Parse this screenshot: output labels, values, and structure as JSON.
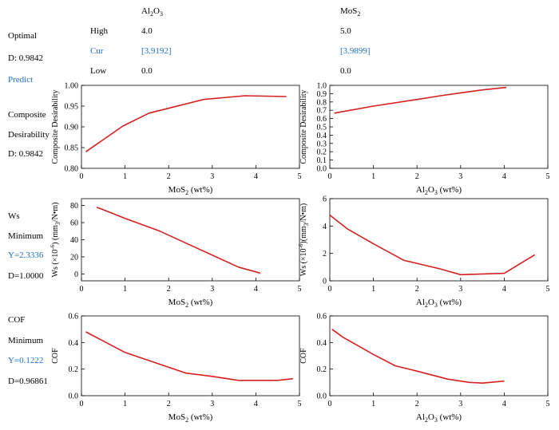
{
  "header": {
    "factors": [
      {
        "name": "Al",
        "sub1": "2",
        "mid": "O",
        "sub2": "3",
        "high": "4.0",
        "cur": "[3.9192]",
        "low": "0.0"
      },
      {
        "name": "MoS",
        "sub1": "2",
        "mid": "",
        "sub2": "",
        "high": "5.0",
        "cur": "[3.9899]",
        "low": "0.0"
      }
    ],
    "row_labels": {
      "high": "High",
      "cur": "Cur",
      "low": "Low"
    },
    "optimal": "Optimal",
    "d_value": "D: 0.9842",
    "predict": "Predict"
  },
  "rows": [
    {
      "lines": [
        "Composite",
        "Desirability",
        "D: 0.9842"
      ],
      "blue_line": -1
    },
    {
      "lines": [
        "Ws",
        "Minimum",
        "Y=2.3336",
        "D=1.0000"
      ],
      "blue_line": 2
    },
    {
      "lines": [
        "COF",
        "Minimum",
        "Y=0.1222",
        "D=0.96861"
      ],
      "blue_line": 2
    }
  ],
  "colors": {
    "line": "#d42020",
    "accent": "#1e6fc7"
  },
  "chart_data": [
    {
      "type": "line",
      "id": "desir-mos2",
      "xlabel": "MoS2 (wt%)",
      "ylabel": "Composite Desirability",
      "xlim": [
        0,
        5
      ],
      "ylim": [
        0.8,
        1.0
      ],
      "xticks": [
        "0",
        "1",
        "2",
        "3",
        "4",
        "5"
      ],
      "yticks": [
        "0.80",
        "0.85",
        "0.90",
        "0.95",
        "1.00"
      ],
      "series": [
        {
          "x": [
            0.1,
            0.95,
            1.55,
            2.8,
            3.75,
            4.2,
            4.7
          ],
          "y": [
            0.84,
            0.902,
            0.933,
            0.966,
            0.975,
            0.974,
            0.973
          ]
        }
      ]
    },
    {
      "type": "line",
      "id": "desir-al2o3",
      "xlabel": "Al2O3 (wt%)",
      "ylabel": "Composite Desirability",
      "xlim": [
        0,
        5
      ],
      "ylim": [
        0,
        1.0
      ],
      "xticks": [
        "0",
        "1",
        "2",
        "3",
        "4",
        "5"
      ],
      "yticks": [
        "0.0",
        "0.1",
        "0.2",
        "0.3",
        "0.4",
        "0.5",
        "0.6",
        "0.7",
        "0.8",
        "0.9",
        "1.0"
      ],
      "series": [
        {
          "x": [
            0.1,
            1.0,
            2.0,
            2.6,
            3.0,
            3.5,
            4.05
          ],
          "y": [
            0.665,
            0.75,
            0.83,
            0.88,
            0.91,
            0.945,
            0.975
          ]
        }
      ]
    },
    {
      "type": "line",
      "id": "ws-mos2",
      "xlabel": "MoS2 (wt%)",
      "ylabel": "Ws (×10-6) (mm3/N•m)",
      "xlim": [
        0,
        5
      ],
      "ylim": [
        -8,
        88
      ],
      "xticks": [
        "0",
        "1",
        "2",
        "3",
        "4",
        "5"
      ],
      "yticks": [
        "0",
        "20",
        "40",
        "60",
        "80"
      ],
      "yticks_at": [
        0,
        20,
        40,
        60,
        80
      ],
      "series": [
        {
          "x": [
            0.35,
            1.0,
            1.8,
            2.7,
            3.6,
            4.1
          ],
          "y": [
            78,
            65,
            50,
            29,
            8,
            1
          ]
        }
      ]
    },
    {
      "type": "line",
      "id": "ws-al2o3",
      "xlabel": "Al2O3 (wt%)",
      "ylabel": "Ws (×10-6)(mm3/N•m)",
      "xlim": [
        0,
        5
      ],
      "ylim": [
        0,
        6
      ],
      "xticks": [
        "0",
        "1",
        "2",
        "3",
        "4",
        "5"
      ],
      "yticks": [
        "0",
        "2",
        "4",
        "6"
      ],
      "yticks_at": [
        0,
        2,
        4,
        6
      ],
      "series": [
        {
          "x": [
            0.0,
            0.4,
            1.0,
            1.7,
            2.5,
            3.0,
            3.5,
            4.0,
            4.7
          ],
          "y": [
            4.8,
            3.8,
            2.7,
            1.5,
            0.9,
            0.45,
            0.5,
            0.55,
            1.9
          ]
        }
      ]
    },
    {
      "type": "line",
      "id": "cof-mos2",
      "xlabel": "MoS2 (wt%)",
      "ylabel": "COF",
      "xlim": [
        0,
        5
      ],
      "ylim": [
        0,
        0.6
      ],
      "xticks": [
        "0",
        "1",
        "2",
        "3",
        "4",
        "5"
      ],
      "yticks": [
        "0.0",
        "0.2",
        "0.4",
        "0.6"
      ],
      "yticks_at": [
        0,
        0.2,
        0.4,
        0.6
      ],
      "series": [
        {
          "x": [
            0.1,
            1.0,
            2.4,
            3.0,
            3.6,
            4.0,
            4.5,
            4.85
          ],
          "y": [
            0.48,
            0.325,
            0.17,
            0.145,
            0.115,
            0.115,
            0.115,
            0.128
          ]
        }
      ]
    },
    {
      "type": "line",
      "id": "cof-al2o3",
      "xlabel": "Al2O3 (wt%)",
      "ylabel": "COF",
      "xlim": [
        0,
        5
      ],
      "ylim": [
        0,
        0.6
      ],
      "xticks": [
        "0",
        "1",
        "2",
        "3",
        "4",
        "5"
      ],
      "yticks": [
        "0.0",
        "0.2",
        "0.4",
        "0.6"
      ],
      "yticks_at": [
        0,
        0.2,
        0.4,
        0.6
      ],
      "series": [
        {
          "x": [
            0.05,
            0.3,
            1.0,
            1.5,
            2.0,
            2.7,
            3.2,
            3.5,
            4.0
          ],
          "y": [
            0.5,
            0.44,
            0.31,
            0.225,
            0.185,
            0.125,
            0.1,
            0.095,
            0.11
          ]
        }
      ]
    }
  ]
}
